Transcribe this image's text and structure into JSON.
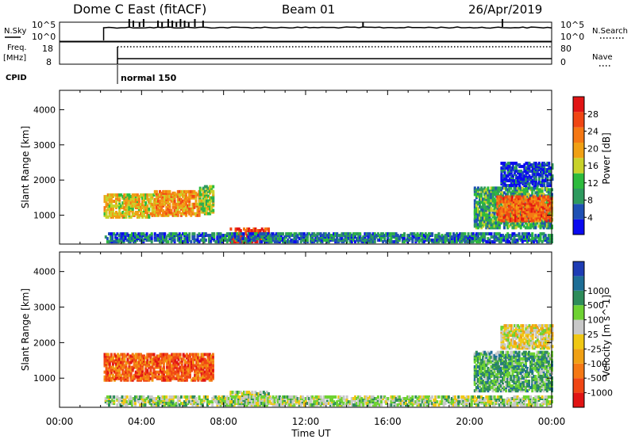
{
  "header": {
    "station": "Dome C East (fitACF)",
    "beam": "Beam 01",
    "date": "26/Apr/2019"
  },
  "params": {
    "nsky_label": "N.Sky",
    "nsky_ticks": [
      "10^5",
      "10^0"
    ],
    "nsearch_label": "N.Search",
    "freq_label_1": "Freq.",
    "freq_label_2": "[MHz]",
    "freq_ticks": [
      "18",
      "8"
    ],
    "nave_label": "Nave",
    "nave_ticks": [
      "80",
      "0"
    ],
    "cpid_label": "CPID",
    "cpid_value": "normal 150",
    "start_time": "02:15"
  },
  "colors": {
    "power": [
      "#0a0af0",
      "#1e50b4",
      "#2e9a5e",
      "#2dbb3d",
      "#c8d22a",
      "#f0a014",
      "#f57814",
      "#f04614",
      "#e11414"
    ],
    "velocity": [
      "#e11414",
      "#f04614",
      "#f57814",
      "#f0a014",
      "#f0c814",
      "#c8c8c8",
      "#6ed232",
      "#2e8c5a",
      "#1e6e96",
      "#1e3cb4"
    ]
  },
  "chart_data": [
    {
      "type": "heatmap",
      "name": "power",
      "xlabel": "",
      "ylabel": "Slant Range [km]",
      "xlim": [
        "00:00",
        "24:00"
      ],
      "ylim": [
        180,
        4550
      ],
      "yticks": [
        "1000",
        "2000",
        "3000",
        "4000"
      ],
      "colorbar_label": "Power [dB]",
      "colorbar_ticks": [
        "4",
        "8",
        "12",
        "16",
        "20",
        "24",
        "28"
      ],
      "colorbar_range": [
        0,
        32
      ],
      "regions": [
        {
          "t0": 2.15,
          "t1": 4.6,
          "r0": 900,
          "r1": 1550,
          "level": 5
        },
        {
          "t0": 4.6,
          "t1": 6.8,
          "r0": 950,
          "r1": 1650,
          "level": 6
        },
        {
          "t0": 6.8,
          "t1": 7.5,
          "r0": 1000,
          "r1": 1800,
          "level": 4
        },
        {
          "t0": 8.3,
          "t1": 10.2,
          "r0": 200,
          "r1": 600,
          "level": 8
        },
        {
          "t0": 20.2,
          "t1": 24.0,
          "r0": 600,
          "r1": 1750,
          "level": 3
        },
        {
          "t0": 21.3,
          "t1": 24.0,
          "r0": 800,
          "r1": 1500,
          "level": 7
        },
        {
          "t0": 21.5,
          "t1": 24.0,
          "r0": 1800,
          "r1": 2450,
          "level": 1
        },
        {
          "t0": 2.2,
          "t1": 24.0,
          "r0": 200,
          "r1": 450,
          "level": 2
        }
      ]
    },
    {
      "type": "heatmap",
      "name": "velocity",
      "xlabel": "Time UT",
      "ylabel": "Slant Range [km]",
      "xlim": [
        "00:00",
        "24:00"
      ],
      "ylim": [
        180,
        4550
      ],
      "yticks": [
        "1000",
        "2000",
        "3000",
        "4000"
      ],
      "xticks": [
        "00:00",
        "04:00",
        "08:00",
        "12:00",
        "16:00",
        "20:00",
        "00:00"
      ],
      "colorbar_label": "Velocity [m s^-1]",
      "colorbar_ticks": [
        "-1000",
        "-500",
        "-100",
        "-25",
        "25",
        "100",
        "500",
        "1000"
      ],
      "regions": [
        {
          "t0": 2.15,
          "t1": 7.5,
          "r0": 900,
          "r1": 1650,
          "level": 2
        },
        {
          "t0": 8.3,
          "t1": 10.2,
          "r0": 200,
          "r1": 600,
          "level": 6
        },
        {
          "t0": 20.2,
          "t1": 24.0,
          "r0": 600,
          "r1": 1700,
          "level": 7
        },
        {
          "t0": 21.5,
          "t1": 24.0,
          "r0": 1800,
          "r1": 2450,
          "level": 5
        },
        {
          "t0": 2.2,
          "t1": 24.0,
          "r0": 200,
          "r1": 450,
          "level": 6
        }
      ]
    }
  ]
}
